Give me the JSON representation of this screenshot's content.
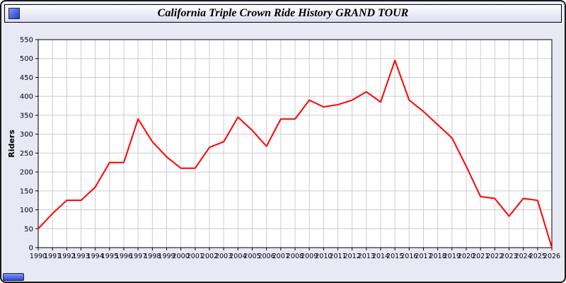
{
  "window": {
    "title": "California Triple Crown Ride History GRAND TOUR"
  },
  "colors": {
    "background": "#e9e9f6",
    "plot_background": "#ffffff",
    "grid": "#cccccc",
    "line": "#ff0000",
    "border": "#000000",
    "widget_blue": "#2a4ad8"
  },
  "chart_data": {
    "type": "line",
    "title": "California Triple Crown Ride History GRAND TOUR",
    "xlabel": "",
    "ylabel": "Riders",
    "ylim": [
      0,
      550
    ],
    "ytick_step": 50,
    "grid": true,
    "plot_bg": "#ffffff",
    "grid_color": "#cccccc",
    "x": [
      1990,
      1991,
      1992,
      1993,
      1994,
      1995,
      1996,
      1997,
      1998,
      1999,
      2000,
      2001,
      2002,
      2003,
      2004,
      2005,
      2006,
      2007,
      2008,
      2009,
      2010,
      2011,
      2012,
      2013,
      2014,
      2015,
      2016,
      2017,
      2018,
      2019,
      2020,
      2021,
      2022,
      2023,
      2024,
      2025,
      2026
    ],
    "series": [
      {
        "name": "Riders",
        "color": "#ff0000",
        "values": [
          50,
          90,
          125,
          125,
          160,
          225,
          225,
          340,
          280,
          240,
          210,
          210,
          265,
          280,
          345,
          310,
          268,
          340,
          340,
          390,
          372,
          378,
          390,
          412,
          385,
          495,
          390,
          360,
          325,
          290,
          215,
          135,
          130,
          83,
          130,
          125,
          0
        ]
      }
    ]
  }
}
